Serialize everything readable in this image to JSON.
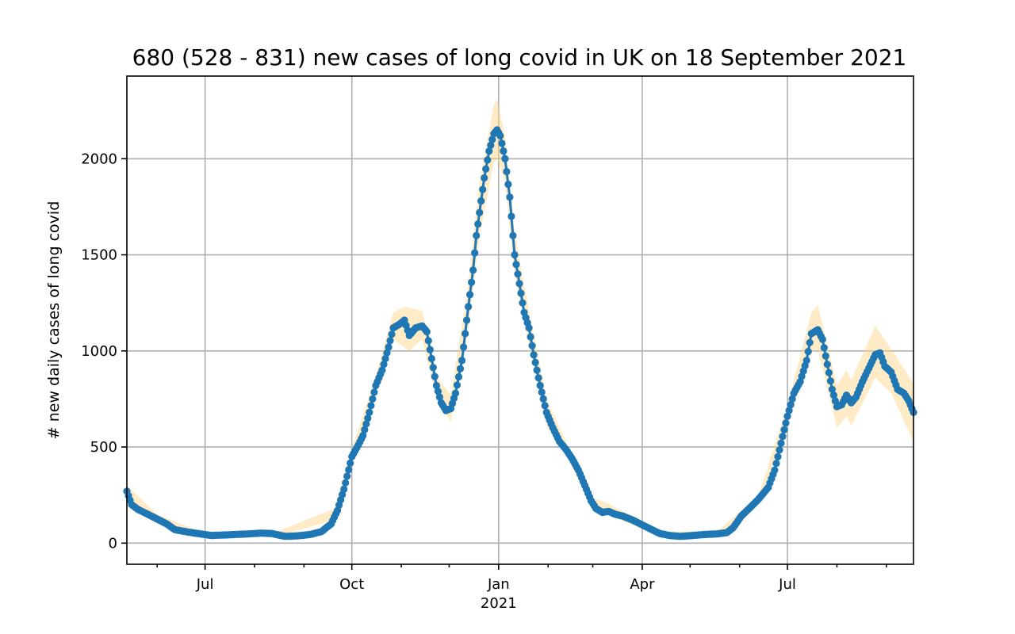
{
  "chart_data": {
    "type": "line",
    "title": "680 (528 - 831) new cases of long covid in UK on 18 September 2021",
    "xlabel": "",
    "ylabel": "# new daily cases of long covid",
    "x_axis": {
      "type": "date",
      "range": [
        "2020-05-13",
        "2021-09-18"
      ],
      "major_ticks": [
        {
          "date": "2020-07-01",
          "label": "Jul",
          "sublabel": ""
        },
        {
          "date": "2020-10-01",
          "label": "Oct",
          "sublabel": ""
        },
        {
          "date": "2021-01-01",
          "label": "Jan",
          "sublabel": "2021"
        },
        {
          "date": "2021-04-01",
          "label": "Apr",
          "sublabel": ""
        },
        {
          "date": "2021-07-01",
          "label": "Jul",
          "sublabel": ""
        }
      ],
      "minor_ticks": [
        "2020-06-01",
        "2020-08-01",
        "2020-09-01",
        "2020-11-01",
        "2020-12-01",
        "2021-02-01",
        "2021-03-01",
        "2021-05-01",
        "2021-06-01",
        "2021-08-01",
        "2021-09-01"
      ]
    },
    "y_axis": {
      "range": [
        -110,
        2430
      ],
      "ticks": [
        0,
        500,
        1000,
        1500,
        2000
      ]
    },
    "grid": true,
    "colors": {
      "line": "#1f77b4",
      "band": "#ffd27f"
    },
    "series": [
      {
        "kind": "estimate_with_interval",
        "points": [
          [
            "2020-05-13",
            270
          ],
          [
            "2020-05-16",
            200
          ],
          [
            "2020-05-20",
            175
          ],
          [
            "2020-05-25",
            155
          ],
          [
            "2020-06-01",
            125
          ],
          [
            "2020-06-07",
            100
          ],
          [
            "2020-06-12",
            70
          ],
          [
            "2020-06-20",
            58
          ],
          [
            "2020-06-28",
            48
          ],
          [
            "2020-07-05",
            40
          ],
          [
            "2020-07-12",
            42
          ],
          [
            "2020-07-20",
            45
          ],
          [
            "2020-07-28",
            48
          ],
          [
            "2020-08-05",
            52
          ],
          [
            "2020-08-12",
            50
          ],
          [
            "2020-08-20",
            35
          ],
          [
            "2020-08-28",
            38
          ],
          [
            "2020-09-05",
            45
          ],
          [
            "2020-09-12",
            60
          ],
          [
            "2020-09-18",
            100
          ],
          [
            "2020-09-22",
            170
          ],
          [
            "2020-09-26",
            280
          ],
          [
            "2020-10-01",
            450
          ],
          [
            "2020-10-05",
            510
          ],
          [
            "2020-10-08",
            560
          ],
          [
            "2020-10-12",
            680
          ],
          [
            "2020-10-16",
            820
          ],
          [
            "2020-10-20",
            900
          ],
          [
            "2020-10-24",
            1020
          ],
          [
            "2020-10-27",
            1120
          ],
          [
            "2020-10-31",
            1140
          ],
          [
            "2020-11-03",
            1160
          ],
          [
            "2020-11-06",
            1080
          ],
          [
            "2020-11-10",
            1120
          ],
          [
            "2020-11-14",
            1130
          ],
          [
            "2020-11-17",
            1100
          ],
          [
            "2020-11-20",
            960
          ],
          [
            "2020-11-23",
            820
          ],
          [
            "2020-11-26",
            730
          ],
          [
            "2020-11-29",
            690
          ],
          [
            "2020-12-02",
            700
          ],
          [
            "2020-12-05",
            780
          ],
          [
            "2020-12-09",
            950
          ],
          [
            "2020-12-13",
            1230
          ],
          [
            "2020-12-16",
            1420
          ],
          [
            "2020-12-18",
            1600
          ],
          [
            "2020-12-20",
            1720
          ],
          [
            "2020-12-23",
            1900
          ],
          [
            "2020-12-26",
            2040
          ],
          [
            "2020-12-29",
            2130
          ],
          [
            "2020-12-31",
            2150
          ],
          [
            "2021-01-02",
            2120
          ],
          [
            "2021-01-05",
            2000
          ],
          [
            "2021-01-08",
            1800
          ],
          [
            "2021-01-11",
            1500
          ],
          [
            "2021-01-14",
            1350
          ],
          [
            "2021-01-17",
            1200
          ],
          [
            "2021-01-20",
            1120
          ],
          [
            "2021-01-23",
            980
          ],
          [
            "2021-01-27",
            820
          ],
          [
            "2021-01-31",
            680
          ],
          [
            "2021-02-04",
            600
          ],
          [
            "2021-02-08",
            530
          ],
          [
            "2021-02-12",
            490
          ],
          [
            "2021-02-16",
            440
          ],
          [
            "2021-02-20",
            380
          ],
          [
            "2021-02-24",
            300
          ],
          [
            "2021-02-28",
            220
          ],
          [
            "2021-03-03",
            180
          ],
          [
            "2021-03-07",
            160
          ],
          [
            "2021-03-11",
            165
          ],
          [
            "2021-03-15",
            150
          ],
          [
            "2021-03-20",
            140
          ],
          [
            "2021-03-26",
            120
          ],
          [
            "2021-04-01",
            95
          ],
          [
            "2021-04-07",
            70
          ],
          [
            "2021-04-12",
            50
          ],
          [
            "2021-04-18",
            40
          ],
          [
            "2021-04-25",
            35
          ],
          [
            "2021-05-03",
            40
          ],
          [
            "2021-05-10",
            45
          ],
          [
            "2021-05-18",
            48
          ],
          [
            "2021-05-24",
            55
          ],
          [
            "2021-05-28",
            80
          ],
          [
            "2021-06-02",
            140
          ],
          [
            "2021-06-07",
            180
          ],
          [
            "2021-06-13",
            230
          ],
          [
            "2021-06-19",
            290
          ],
          [
            "2021-06-23",
            380
          ],
          [
            "2021-06-27",
            520
          ],
          [
            "2021-07-01",
            660
          ],
          [
            "2021-07-05",
            780
          ],
          [
            "2021-07-09",
            840
          ],
          [
            "2021-07-13",
            950
          ],
          [
            "2021-07-16",
            1090
          ],
          [
            "2021-07-20",
            1110
          ],
          [
            "2021-07-23",
            1060
          ],
          [
            "2021-07-26",
            930
          ],
          [
            "2021-07-29",
            800
          ],
          [
            "2021-08-01",
            710
          ],
          [
            "2021-08-04",
            720
          ],
          [
            "2021-08-07",
            770
          ],
          [
            "2021-08-10",
            730
          ],
          [
            "2021-08-13",
            760
          ],
          [
            "2021-08-17",
            840
          ],
          [
            "2021-08-21",
            910
          ],
          [
            "2021-08-25",
            980
          ],
          [
            "2021-08-28",
            990
          ],
          [
            "2021-08-31",
            920
          ],
          [
            "2021-09-04",
            890
          ],
          [
            "2021-09-08",
            800
          ],
          [
            "2021-09-12",
            780
          ],
          [
            "2021-09-15",
            740
          ],
          [
            "2021-09-18",
            680
          ]
        ],
        "lower": [
          [
            "2020-05-13",
            240
          ],
          [
            "2020-06-01",
            110
          ],
          [
            "2020-07-01",
            35
          ],
          [
            "2020-08-15",
            35
          ],
          [
            "2020-09-20",
            120
          ],
          [
            "2020-10-01",
            420
          ],
          [
            "2020-10-16",
            780
          ],
          [
            "2020-10-27",
            1060
          ],
          [
            "2020-11-06",
            1000
          ],
          [
            "2020-11-14",
            1060
          ],
          [
            "2020-11-23",
            760
          ],
          [
            "2020-12-02",
            630
          ],
          [
            "2020-12-13",
            1120
          ],
          [
            "2020-12-20",
            1600
          ],
          [
            "2020-12-29",
            1980
          ],
          [
            "2020-12-31",
            2000
          ],
          [
            "2021-01-05",
            1880
          ],
          [
            "2021-01-11",
            1400
          ],
          [
            "2021-01-20",
            1030
          ],
          [
            "2021-01-31",
            610
          ],
          [
            "2021-02-12",
            460
          ],
          [
            "2021-02-28",
            200
          ],
          [
            "2021-03-15",
            130
          ],
          [
            "2021-04-12",
            40
          ],
          [
            "2021-05-18",
            38
          ],
          [
            "2021-06-13",
            210
          ],
          [
            "2021-07-01",
            610
          ],
          [
            "2021-07-16",
            990
          ],
          [
            "2021-07-20",
            1010
          ],
          [
            "2021-08-01",
            600
          ],
          [
            "2021-08-07",
            660
          ],
          [
            "2021-08-10",
            610
          ],
          [
            "2021-08-25",
            860
          ],
          [
            "2021-09-04",
            780
          ],
          [
            "2021-09-18",
            528
          ]
        ],
        "upper": [
          [
            "2020-05-13",
            300
          ],
          [
            "2020-06-01",
            150
          ],
          [
            "2020-07-01",
            50
          ],
          [
            "2020-08-15",
            60
          ],
          [
            "2020-09-20",
            180
          ],
          [
            "2020-10-01",
            490
          ],
          [
            "2020-10-16",
            870
          ],
          [
            "2020-10-27",
            1200
          ],
          [
            "2020-11-03",
            1230
          ],
          [
            "2020-11-14",
            1210
          ],
          [
            "2020-11-23",
            870
          ],
          [
            "2020-12-02",
            770
          ],
          [
            "2020-12-13",
            1350
          ],
          [
            "2020-12-20",
            1880
          ],
          [
            "2020-12-29",
            2280
          ],
          [
            "2020-12-31",
            2310
          ],
          [
            "2021-01-05",
            2120
          ],
          [
            "2021-01-11",
            1610
          ],
          [
            "2021-01-20",
            1210
          ],
          [
            "2021-01-31",
            750
          ],
          [
            "2021-02-12",
            530
          ],
          [
            "2021-02-28",
            240
          ],
          [
            "2021-03-11",
            205
          ],
          [
            "2021-04-12",
            60
          ],
          [
            "2021-05-18",
            60
          ],
          [
            "2021-06-13",
            250
          ],
          [
            "2021-07-01",
            720
          ],
          [
            "2021-07-16",
            1200
          ],
          [
            "2021-07-20",
            1240
          ],
          [
            "2021-08-01",
            820
          ],
          [
            "2021-08-07",
            900
          ],
          [
            "2021-08-10",
            850
          ],
          [
            "2021-08-25",
            1130
          ],
          [
            "2021-09-04",
            1010
          ],
          [
            "2021-09-18",
            831
          ]
        ]
      }
    ]
  }
}
